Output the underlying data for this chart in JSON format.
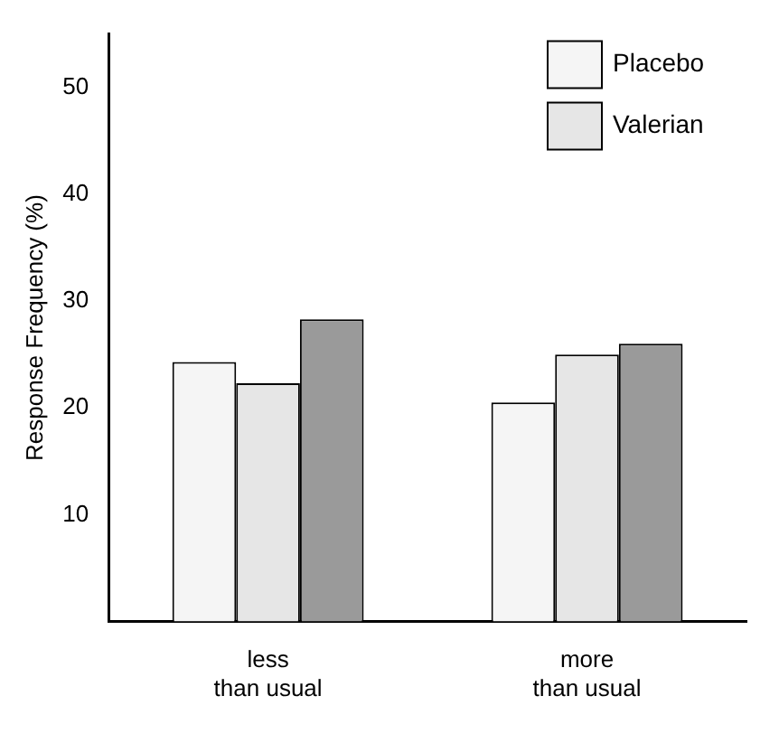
{
  "chart_data": {
    "type": "bar",
    "ylabel": "Response Frequency (%)",
    "categories": [
      "less\nthan usual",
      "more\nthan usual"
    ],
    "series": [
      {
        "name": "Placebo",
        "color": "#f5f5f5",
        "values": [
          24.3,
          20.5
        ]
      },
      {
        "name": "Valerian",
        "color": "#e6e6e6",
        "values": [
          22.3,
          25
        ]
      },
      {
        "color": "#9a9a9a",
        "values": [
          28.3,
          26
        ]
      }
    ],
    "ylim": [
      0,
      55
    ],
    "yticks": [
      10,
      20,
      30,
      40,
      50
    ],
    "grid": false,
    "legend": "top right"
  }
}
